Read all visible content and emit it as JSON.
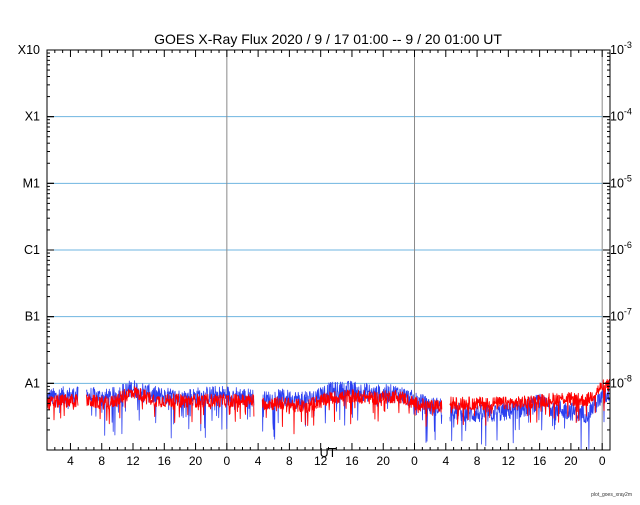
{
  "chart_data": {
    "type": "line",
    "title": "GOES X-Ray Flux   2020  /  9  /  17   01:00 --   9  /  20   01:00   UT",
    "xlabel": "UT",
    "x_tick_labels": [
      "4",
      "8",
      "12",
      "16",
      "20",
      "0",
      "4",
      "8",
      "12",
      "16",
      "20",
      "0",
      "4",
      "8",
      "12",
      "16",
      "20",
      "0"
    ],
    "x_tick_hours": [
      4,
      8,
      12,
      16,
      20,
      24,
      28,
      32,
      36,
      40,
      44,
      48,
      52,
      56,
      60,
      64,
      68,
      72
    ],
    "x_range_hours": [
      1,
      73
    ],
    "day_boundaries_hours": [
      24,
      48,
      72
    ],
    "y_scale": "log",
    "ylim": [
      "1e-9",
      "1e-3"
    ],
    "left_axis_labels": [
      "X10",
      "X1",
      "M1",
      "C1",
      "B1",
      "A1"
    ],
    "left_axis_values": [
      "1e-3",
      "1e-4",
      "1e-5",
      "1e-6",
      "1e-7",
      "1e-8"
    ],
    "right_axis_labels": [
      "10",
      "10",
      "10",
      "10",
      "10",
      "10"
    ],
    "right_axis_exponents": [
      "-3",
      "-4",
      "-5",
      "-6",
      "-7",
      "-8"
    ],
    "right_axis_values": [
      "1e-3",
      "1e-4",
      "1e-5",
      "1e-6",
      "1e-7",
      "1e-8"
    ],
    "gridlines": "horizontal at each flare class boundary",
    "data_gaps_hours": [
      [
        5.0,
        6.0
      ],
      [
        27.5,
        28.5
      ],
      [
        51.5,
        52.5
      ]
    ],
    "series": [
      {
        "color": "#2b3ff0",
        "x": [
          1,
          3,
          5,
          6,
          9,
          12,
          15,
          18,
          21,
          24,
          27.5,
          28.5,
          31,
          34,
          37,
          40,
          43,
          46,
          48,
          50,
          51.5,
          52.5,
          55,
          58,
          61,
          64,
          67,
          70,
          72,
          73
        ],
        "y": [
          "6.0e-9",
          "6.5e-9",
          "6.5e-9",
          "6.5e-9",
          "6.0e-9",
          "8.5e-9",
          "6.5e-9",
          "6.0e-9",
          "6.5e-9",
          "6.8e-9",
          "6.0e-9",
          "5.5e-9",
          "6.0e-9",
          "5.5e-9",
          "7.5e-9",
          "8.0e-9",
          "7.0e-9",
          "7.0e-9",
          "5.5e-9",
          "4.5e-9",
          "4.5e-9",
          "4.0e-9",
          "3.5e-9",
          "3.5e-9",
          "4.0e-9",
          "5.0e-9",
          "4.0e-9",
          "3.5e-9",
          "6.0e-9",
          "7.5e-9"
        ]
      },
      {
        "color": "#ff0000",
        "x": [
          1,
          3,
          5,
          6,
          9,
          12,
          15,
          18,
          21,
          24,
          27.5,
          28.5,
          31,
          34,
          37,
          40,
          43,
          46,
          48,
          50,
          51.5,
          52.5,
          55,
          58,
          61,
          64,
          67,
          70,
          72,
          73
        ],
        "y": [
          "5.0e-9",
          "5.5e-9",
          "5.5e-9",
          "5.5e-9",
          "5.0e-9",
          "7.5e-9",
          "5.5e-9",
          "5.5e-9",
          "5.5e-9",
          "5.5e-9",
          "5.5e-9",
          "5.0e-9",
          "5.0e-9",
          "4.5e-9",
          "6.0e-9",
          "6.5e-9",
          "6.0e-9",
          "6.5e-9",
          "5.0e-9",
          "4.5e-9",
          "4.5e-9",
          "5.0e-9",
          "5.0e-9",
          "5.0e-9",
          "5.0e-9",
          "5.5e-9",
          "6.0e-9",
          "5.5e-9",
          "9.0e-9",
          "9.5e-9"
        ]
      }
    ]
  },
  "footer_note": "plot_goes_xray2m"
}
